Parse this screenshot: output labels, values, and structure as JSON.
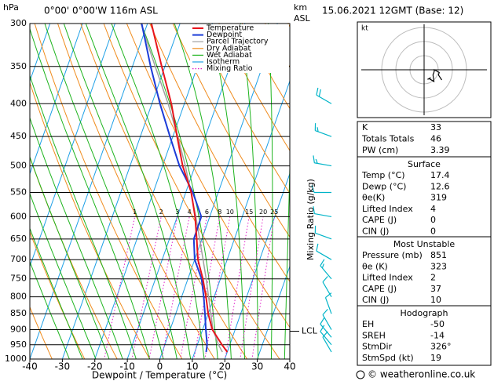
{
  "chart_data": {
    "type": "skewt",
    "title": "0°00' 0°00'W 116m ASL",
    "date": "15.06.2021 12GMT (Base: 12)",
    "y_unit": "hPa",
    "km_unit": "km",
    "km_ref": "ASL",
    "xlabel": "Dewpoint / Temperature (°C)",
    "mixing_ratio_axis_label": "Mixing Ratio (g/kg)",
    "xlim": [
      -40,
      40
    ],
    "xticks": [
      -40,
      -30,
      -20,
      -10,
      0,
      10,
      20,
      30,
      40
    ],
    "ylim": [
      1000,
      300
    ],
    "yticks": [
      300,
      350,
      400,
      450,
      500,
      550,
      600,
      650,
      700,
      750,
      800,
      850,
      900,
      950,
      1000
    ],
    "log_y": true,
    "pressure": [
      975,
      950,
      900,
      850,
      800,
      750,
      700,
      650,
      600,
      550,
      500,
      450,
      400,
      350,
      300
    ],
    "series": [
      {
        "name": "Temperature",
        "color": "#e8141c",
        "values": [
          20,
          17.6,
          13,
          10,
          7.5,
          4.6,
          1,
          -1.6,
          -4.5,
          -8.3,
          -13.8,
          -18.7,
          -24,
          -31,
          -38.8
        ]
      },
      {
        "name": "Dewpoint",
        "color": "#1c3cd8",
        "values": [
          13.5,
          13,
          11,
          9,
          6.8,
          4.2,
          0,
          -2.5,
          -2.6,
          -7.8,
          -14.8,
          -20.9,
          -27.5,
          -34.4,
          -41.8
        ]
      },
      {
        "name": "Parcel Trajectory",
        "color": "#a0a0a0",
        "values": [
          18.5,
          16.5,
          13.2,
          10.8,
          8.3,
          5.6,
          2.6,
          -0.7,
          -4.3,
          -8.4,
          -13,
          -18.5,
          -25,
          -33,
          -42
        ]
      }
    ],
    "background_lines": [
      {
        "name": "Dry Adiabat",
        "color": "#f08c1e",
        "style": "solid"
      },
      {
        "name": "Wet Adiabat",
        "color": "#1eb41e",
        "style": "solid"
      },
      {
        "name": "Isotherm",
        "color": "#1ea0e6",
        "style": "solid"
      },
      {
        "name": "Mixing Ratio",
        "color": "#e01ec8",
        "style": "dotted"
      }
    ],
    "mixing_ratios": [
      1,
      2,
      3,
      4,
      6,
      8,
      10,
      15,
      20,
      25
    ],
    "lcl": {
      "label": "LCL",
      "pressure": 905
    },
    "winds": {
      "color": "#00b4c8",
      "pressure": [
        975,
        950,
        925,
        900,
        850,
        800,
        750,
        700,
        650,
        600,
        550,
        500,
        450,
        400
      ],
      "direction": [
        330,
        320,
        320,
        330,
        340,
        330,
        320,
        300,
        290,
        280,
        270,
        280,
        290,
        300
      ],
      "speed": [
        10,
        10,
        10,
        10,
        10,
        10,
        15,
        10,
        10,
        10,
        10,
        15,
        15,
        20
      ]
    },
    "hodograph": {
      "unit_label": "kt"
    }
  },
  "indices": {
    "rows": [
      [
        "K",
        33
      ],
      [
        "Totals Totals",
        46
      ],
      [
        "PW (cm)",
        3.39
      ]
    ],
    "sections": [
      {
        "title": "Surface",
        "rows": [
          [
            "Temp (°C)",
            17.4
          ],
          [
            "Dewp (°C)",
            12.6
          ],
          [
            "θe(K)",
            319
          ],
          [
            "Lifted Index",
            4
          ],
          [
            "CAPE (J)",
            0
          ],
          [
            "CIN (J)",
            0
          ]
        ]
      },
      {
        "title": "Most Unstable",
        "rows": [
          [
            "Pressure (mb)",
            851
          ],
          [
            "θe (K)",
            323
          ],
          [
            "Lifted Index",
            2
          ],
          [
            "CAPE (J)",
            37
          ],
          [
            "CIN (J)",
            10
          ]
        ]
      },
      {
        "title": "Hodograph",
        "rows": [
          [
            "EH",
            -50
          ],
          [
            "SREH",
            -14
          ],
          [
            "StmDir",
            "326°"
          ],
          [
            "StmSpd (kt)",
            19
          ]
        ]
      }
    ]
  },
  "footer": "© weatheronline.co.uk"
}
